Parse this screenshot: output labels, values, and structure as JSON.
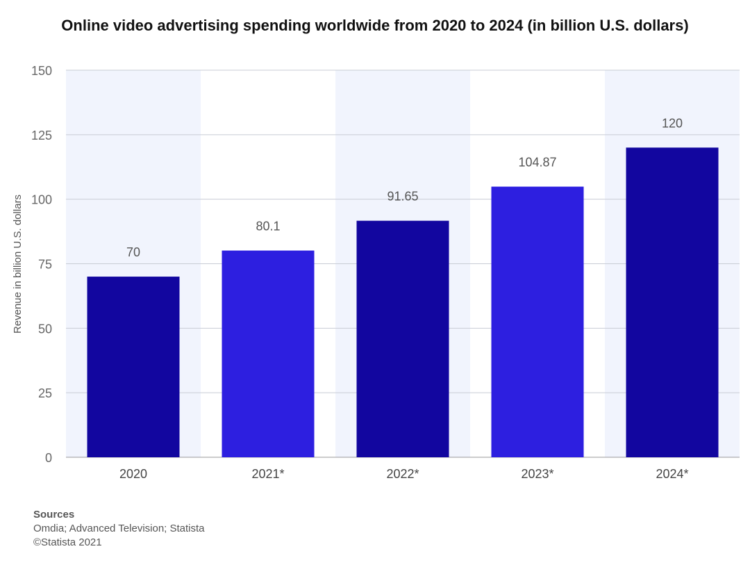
{
  "chart_data": {
    "type": "bar",
    "title": "Online video advertising spending worldwide from 2020 to 2024 (in billion U.S. dollars)",
    "xlabel": "",
    "ylabel": "Revenue in billion U.S. dollars",
    "categories": [
      "2020",
      "2021*",
      "2022*",
      "2023*",
      "2024*"
    ],
    "values": [
      70,
      80.1,
      91.65,
      104.87,
      120
    ],
    "value_labels": [
      "70",
      "80.1",
      "91.65",
      "104.87",
      "120"
    ],
    "ylim": [
      0,
      150
    ],
    "yticks": [
      0,
      25,
      50,
      75,
      100,
      125,
      150
    ],
    "grid": true,
    "legend": "none",
    "bar_colors": [
      "#12069f",
      "#2d1fe0",
      "#12069f",
      "#2d1fe0",
      "#12069f"
    ],
    "band_color": "#f1f4fd"
  },
  "sources": {
    "heading": "Sources",
    "line1": "Omdia; Advanced Television; Statista",
    "line2": "©Statista 2021"
  }
}
